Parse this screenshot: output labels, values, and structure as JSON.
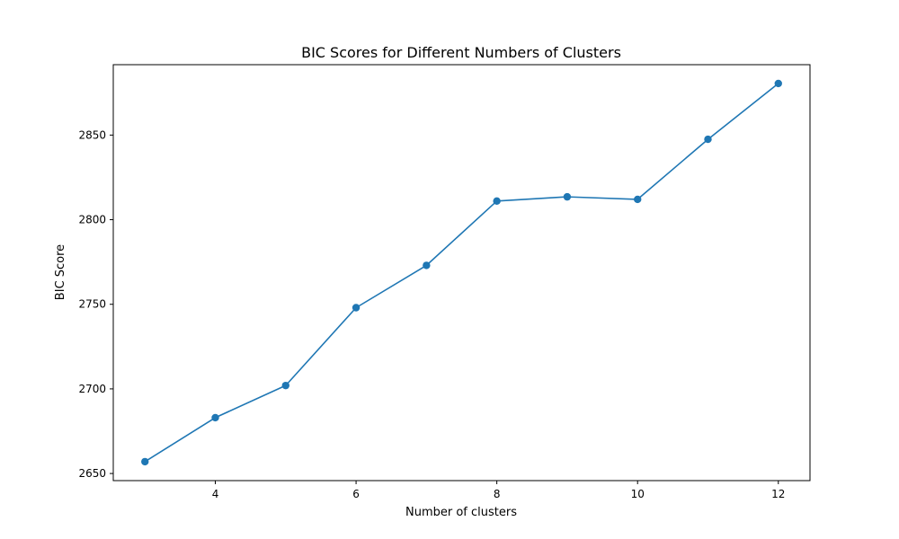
{
  "colors": {
    "series": "#1f77b4",
    "axes": "#000000",
    "background": "#ffffff"
  },
  "chart_data": {
    "type": "line",
    "title": "BIC Scores for Different Numbers of Clusters",
    "xlabel": "Number of clusters",
    "ylabel": "BIC Score",
    "xlim": [
      2.55,
      12.45
    ],
    "ylim": [
      2645.8,
      2891.6
    ],
    "xticks": [
      4,
      6,
      8,
      10,
      12
    ],
    "yticks": [
      2650,
      2700,
      2750,
      2800,
      2850
    ],
    "grid": false,
    "legend": "none",
    "markers": "circle",
    "series": [
      {
        "x": [
          3,
          4,
          5,
          6,
          7,
          8,
          9,
          10,
          11,
          12
        ],
        "values": [
          2657,
          2683,
          2702,
          2748,
          2773,
          2811,
          2813.5,
          2812,
          2847.5,
          2880.5
        ]
      }
    ]
  }
}
